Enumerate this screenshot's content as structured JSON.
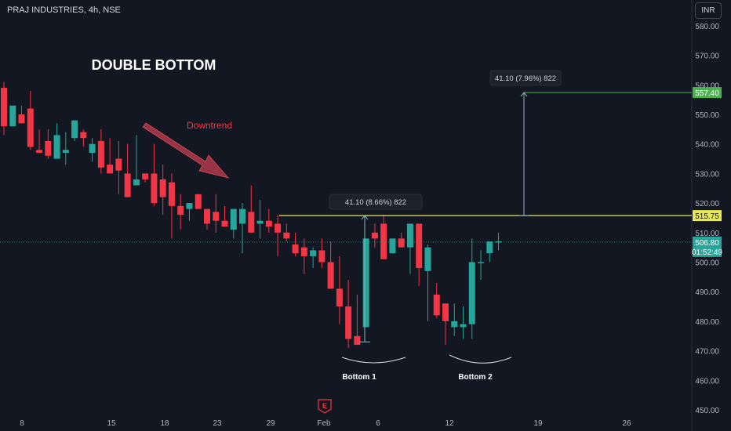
{
  "header": {
    "symbol": "PRAJ INDUSTRIES, 4h, NSE",
    "currency": "INR"
  },
  "colors": {
    "up": "#26a69a",
    "down": "#f23645",
    "bg": "#131722",
    "resistance": "#e9e94d",
    "target": "#4caf50",
    "measure": "#8ab4c0",
    "arrow": "#b2394a"
  },
  "chart_data": {
    "type": "candlestick",
    "ylim": [
      450,
      585
    ],
    "y_ticks": [
      460,
      470,
      480,
      490,
      500,
      510,
      520,
      530,
      540,
      550,
      560,
      570,
      580
    ],
    "y_tick_labels": [
      "460.00",
      "470.00",
      "480.00",
      "490.00",
      "500.00",
      "510.00",
      "520.00",
      "530.00",
      "540.00",
      "550.00",
      "560.00",
      "570.00",
      "580.00"
    ],
    "bottom_tick": "450.00",
    "x_tick_labels": [
      "8",
      "15",
      "18",
      "23",
      "29",
      "Feb",
      "6",
      "12",
      "19",
      "26"
    ],
    "candles": [
      [
        561,
        559,
        546,
        545,
        543
      ],
      [
        547,
        546,
        553,
        544,
        548
      ],
      [
        553,
        550,
        547,
        545,
        552
      ],
      [
        558,
        552,
        539,
        536,
        538
      ],
      [
        545,
        538,
        537,
        536,
        541
      ],
      [
        545,
        541,
        536,
        532,
        535
      ],
      [
        547,
        535,
        543,
        542,
        535
      ],
      [
        544,
        537,
        538,
        535,
        533
      ],
      [
        545,
        542,
        548,
        542,
        541
      ],
      [
        545,
        544,
        542,
        543,
        539
      ],
      [
        542,
        537,
        540,
        537,
        534
      ],
      [
        545,
        541,
        532,
        532,
        530
      ],
      [
        542,
        533,
        530,
        528,
        534
      ],
      [
        541,
        535,
        531,
        530,
        523
      ],
      [
        540,
        530,
        522,
        522,
        525
      ],
      [
        543,
        526,
        528,
        530,
        526
      ],
      [
        527,
        530,
        528,
        523,
        528
      ],
      [
        540,
        530,
        520,
        518,
        519
      ],
      [
        533,
        528,
        522,
        520,
        516
      ],
      [
        530,
        527,
        519,
        517,
        508
      ],
      [
        523,
        519,
        516,
        518,
        511
      ],
      [
        520,
        518,
        520,
        519,
        514
      ],
      [
        521,
        523,
        518,
        517,
        519
      ],
      [
        516,
        518,
        513,
        512,
        511
      ],
      [
        523,
        517,
        514,
        510,
        510
      ],
      [
        519,
        514,
        512,
        510,
        515
      ],
      [
        514,
        511,
        518,
        508,
        508
      ],
      [
        520,
        513,
        518,
        512,
        503
      ],
      [
        526,
        517,
        510,
        512,
        510
      ],
      [
        521,
        513,
        514,
        511,
        508
      ],
      [
        518,
        514,
        512,
        515,
        510
      ],
      [
        516,
        513,
        510,
        511,
        502
      ],
      [
        513,
        510,
        508,
        500,
        507
      ],
      [
        510,
        506,
        503,
        499,
        502
      ],
      [
        508,
        505,
        502,
        495,
        496
      ],
      [
        505,
        502,
        504,
        496,
        498
      ],
      [
        508,
        504,
        500,
        492,
        498
      ],
      [
        507,
        500,
        491,
        482,
        491
      ],
      [
        502,
        491,
        485,
        478,
        479
      ],
      [
        494,
        485,
        474,
        469,
        471
      ],
      [
        489,
        475,
        472,
        473,
        473
      ],
      [
        508,
        478,
        508,
        472,
        508
      ],
      [
        513,
        510,
        508,
        505,
        505
      ],
      [
        516,
        513,
        501,
        500,
        504
      ],
      [
        505,
        503,
        508,
        505,
        504
      ],
      [
        510,
        508,
        505,
        508,
        508
      ],
      [
        513,
        505,
        513,
        497,
        496
      ],
      [
        508,
        513,
        498,
        494,
        492
      ],
      [
        506,
        497,
        505,
        478,
        480
      ],
      [
        493,
        489,
        482,
        476,
        481
      ],
      [
        484,
        486,
        480,
        476,
        472
      ],
      [
        486,
        478,
        480,
        480,
        475
      ],
      [
        485,
        478,
        479,
        476,
        474
      ],
      [
        508,
        479,
        500,
        476,
        474
      ],
      [
        504,
        500,
        500,
        498,
        494
      ],
      [
        506,
        503,
        507,
        506,
        500
      ],
      [
        510,
        507,
        507,
        504,
        504
      ]
    ],
    "annotations": {
      "title": "DOUBLE BOTTOM",
      "trend_label": "Downtrend",
      "bottom1_label": "Bottom 1",
      "bottom2_label": "Bottom 2",
      "measure1_label": "41.10 (8.66%) 822",
      "measure2_label": "41.10 (7.96%) 822",
      "earnings_marker": "E"
    },
    "price_tags": {
      "target": {
        "value": 557.4,
        "label": "557.40"
      },
      "resistance": {
        "value": 515.75,
        "label": "515.75"
      },
      "last": {
        "value": 506.8,
        "label": "506.80",
        "countdown": "01:52:49"
      }
    }
  }
}
